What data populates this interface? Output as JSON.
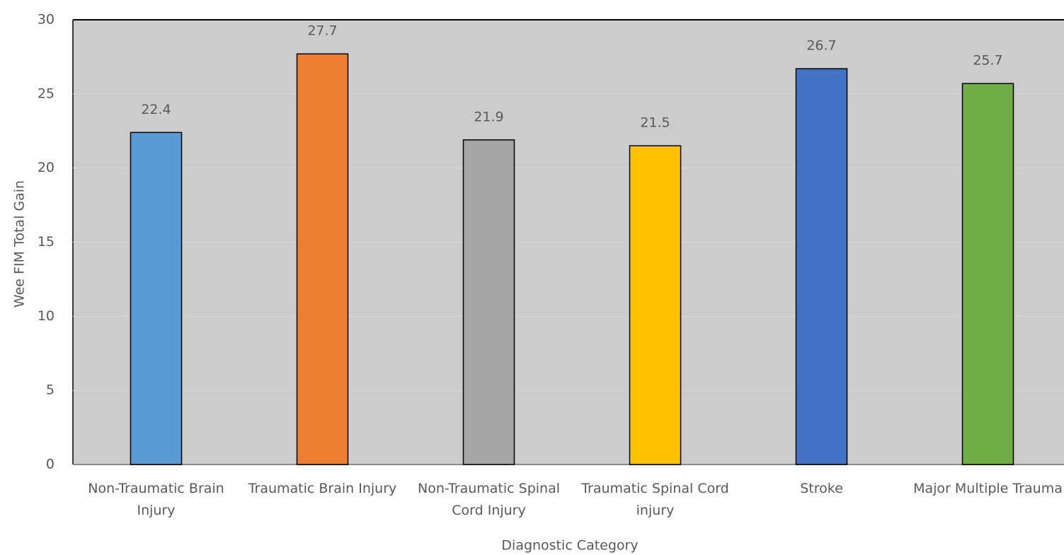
{
  "chart_data": {
    "type": "bar",
    "xlabel": "Diagnostic Category",
    "ylabel": "Wee FIM Total Gain",
    "categories": [
      "Non-Traumatic Brain Injury",
      "Traumatic Brain Injury",
      "Non-Traumatic Spinal Cord Injury",
      "Traumatic Spinal Cord injury",
      "Stroke",
      "Major Multiple Trauma"
    ],
    "values": [
      22.4,
      27.7,
      21.9,
      21.5,
      26.7,
      25.7
    ],
    "colors": [
      "#5b9bd5",
      "#ed7d31",
      "#a5a5a5",
      "#ffc000",
      "#4472c4",
      "#70ad47"
    ],
    "ylim": [
      0,
      30
    ],
    "yticks": [
      0,
      5,
      10,
      15,
      20,
      25,
      30
    ],
    "grid": true
  }
}
